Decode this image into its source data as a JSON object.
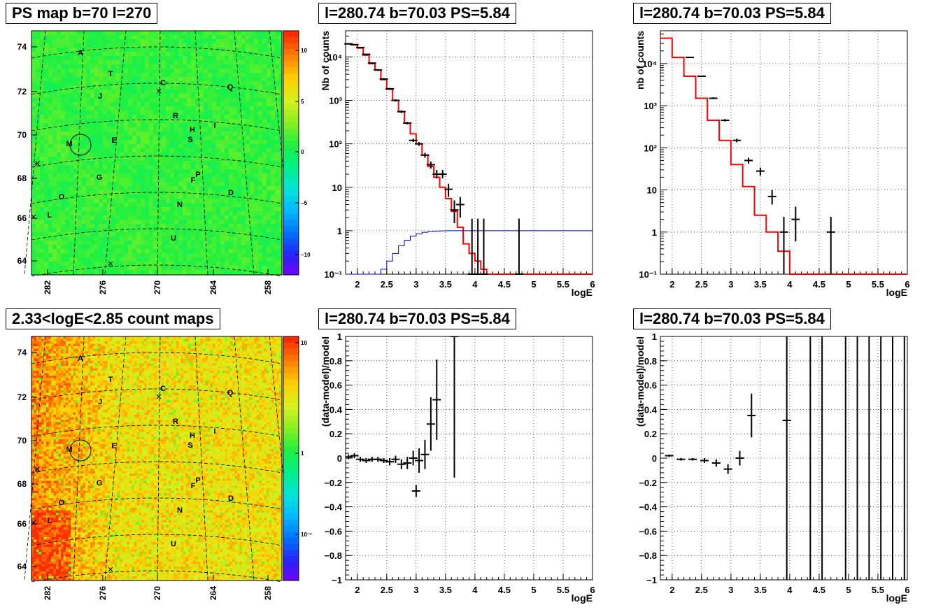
{
  "titles": {
    "tl": "PS map b=70 l=270",
    "tm": "l=280.74 b=70.03 PS=5.84",
    "tr": "l=280.74 b=70.03 PS=5.84",
    "bl": "2.33<logE<2.85 count maps",
    "bm": "l=280.74 b=70.03 PS=5.84",
    "br": "l=280.74 b=70.03 PS=5.84"
  },
  "colors": {
    "data": "#000000",
    "model": "#ff0000",
    "exposure": "#0000cc",
    "grid": "#000000"
  },
  "chart_data": [
    {
      "type": "heatmap",
      "panel": "tl",
      "title": "PS map b=70 l=270",
      "x_ticks": [
        "282",
        "276",
        "270",
        "264",
        "258"
      ],
      "y_ticks": [
        "74",
        "72",
        "70",
        "68",
        "66",
        "64"
      ],
      "colorbar_ticks": [
        "10",
        "5",
        "0",
        "−5",
        "−10"
      ],
      "colorbar_range": [
        -12,
        12
      ],
      "source_labels": [
        "A",
        "T",
        "C",
        "J",
        "Q",
        "R",
        "H",
        "I",
        "S",
        "M",
        "E",
        "K",
        "G",
        "P",
        "F",
        "D",
        "O",
        "N",
        "L",
        "U"
      ]
    },
    {
      "type": "line",
      "panel": "tm",
      "title": "l=280.74 b=70.03 PS=5.84",
      "xlabel": "logE",
      "ylabel": "Nb of counts",
      "yscale": "log",
      "xlim": [
        1.8,
        6
      ],
      "ylim": [
        0.1,
        40000
      ],
      "x_ticks": [
        "2",
        "2.5",
        "3",
        "3.5",
        "4",
        "4.5",
        "5",
        "5.5",
        "6"
      ],
      "y_ticks": [
        "10⁻¹",
        "1",
        "10",
        "10²",
        "10³",
        "10⁴"
      ],
      "bin_edges": [
        1.8,
        1.9,
        2.0,
        2.1,
        2.2,
        2.3,
        2.4,
        2.5,
        2.6,
        2.7,
        2.8,
        2.9,
        3.0,
        3.1,
        3.2,
        3.3,
        3.4,
        3.5,
        3.6,
        3.7,
        3.8,
        3.9,
        4.0,
        4.1,
        4.2,
        4.3,
        6.0
      ],
      "series": [
        {
          "name": "model",
          "values": [
            20000,
            19000,
            16000,
            11000,
            7000,
            5000,
            3000,
            1800,
            1000,
            550,
            300,
            170,
            100,
            55,
            30,
            17,
            10,
            5.5,
            2.8,
            1.2,
            0.5,
            0.3,
            0.2,
            0.13,
            0.1,
            0.1
          ]
        },
        {
          "name": "exposure",
          "x": [
            1.8,
            1.9,
            2.0,
            2.1,
            2.2,
            2.3,
            2.4,
            2.5,
            2.6,
            2.7,
            2.8,
            2.9,
            3.0,
            3.1,
            3.2,
            3.3,
            3.4,
            3.5,
            3.6,
            3.7,
            3.8,
            6.0
          ],
          "values": [
            0.1,
            0.1,
            0.1,
            0.1,
            0.1,
            0.1,
            0.13,
            0.2,
            0.3,
            0.45,
            0.6,
            0.75,
            0.85,
            0.92,
            0.96,
            0.98,
            0.99,
            1,
            1,
            1,
            1,
            1
          ]
        },
        {
          "name": "data",
          "points": [
            {
              "x": 1.85,
              "y": 20000,
              "lo": 19500,
              "hi": 20500
            },
            {
              "x": 1.95,
              "y": 19200,
              "lo": 18700,
              "hi": 19700
            },
            {
              "x": 2.05,
              "y": 16500,
              "lo": 16000,
              "hi": 17000
            },
            {
              "x": 2.15,
              "y": 11500,
              "lo": 11100,
              "hi": 11900
            },
            {
              "x": 2.25,
              "y": 7200,
              "lo": 6900,
              "hi": 7500
            },
            {
              "x": 2.35,
              "y": 5000,
              "lo": 4800,
              "hi": 5200
            },
            {
              "x": 2.45,
              "y": 3100,
              "lo": 2950,
              "hi": 3250
            },
            {
              "x": 2.55,
              "y": 1850,
              "lo": 1750,
              "hi": 1950
            },
            {
              "x": 2.65,
              "y": 1000,
              "lo": 940,
              "hi": 1060
            },
            {
              "x": 2.75,
              "y": 550,
              "lo": 510,
              "hi": 590
            },
            {
              "x": 2.85,
              "y": 300,
              "lo": 280,
              "hi": 320
            },
            {
              "x": 2.95,
              "y": 120,
              "lo": 110,
              "hi": 131
            },
            {
              "x": 3.05,
              "y": 100,
              "lo": 90,
              "hi": 110
            },
            {
              "x": 3.15,
              "y": 55,
              "lo": 48,
              "hi": 62
            },
            {
              "x": 3.25,
              "y": 33,
              "lo": 27,
              "hi": 39
            },
            {
              "x": 3.35,
              "y": 20,
              "lo": 16,
              "hi": 25
            },
            {
              "x": 3.45,
              "y": 20,
              "lo": 16,
              "hi": 25
            },
            {
              "x": 3.55,
              "y": 9,
              "lo": 6,
              "hi": 12
            },
            {
              "x": 3.65,
              "y": 3,
              "lo": 1.5,
              "hi": 5
            },
            {
              "x": 3.75,
              "y": 4,
              "lo": 2,
              "hi": 6
            },
            {
              "x": 3.95,
              "y": 0.1,
              "lo": 0.1,
              "hi": 1.9
            },
            {
              "x": 4.05,
              "y": 0.1,
              "lo": 0.1,
              "hi": 1.9
            },
            {
              "x": 4.15,
              "y": 0.1,
              "lo": 0.1,
              "hi": 1.9
            },
            {
              "x": 4.75,
              "y": 0.1,
              "lo": 0.1,
              "hi": 1.9
            }
          ]
        }
      ]
    },
    {
      "type": "line",
      "panel": "tr",
      "title": "l=280.74 b=70.03 PS=5.84",
      "xlabel": "logE",
      "ylabel": "nb of counts",
      "yscale": "log",
      "xlim": [
        1.8,
        6
      ],
      "ylim": [
        0.1,
        60000
      ],
      "x_ticks": [
        "2",
        "2.5",
        "3",
        "3.5",
        "4",
        "4.5",
        "5",
        "5.5",
        "6"
      ],
      "y_ticks": [
        "10⁻¹",
        "1",
        "10",
        "10²",
        "10³",
        "10⁴"
      ],
      "bin_edges": [
        1.8,
        2.0,
        2.2,
        2.4,
        2.6,
        2.8,
        3.0,
        3.2,
        3.4,
        3.6,
        3.8,
        4.0,
        4.2,
        6.0
      ],
      "series": [
        {
          "name": "model",
          "values": [
            40000,
            14000,
            5000,
            1500,
            450,
            150,
            40,
            12,
            2.5,
            1,
            0.35,
            0.1,
            0.1
          ]
        },
        {
          "name": "data",
          "points": [
            {
              "x": 2.3,
              "y": 14000,
              "lo": 13700,
              "hi": 14300
            },
            {
              "x": 2.5,
              "y": 5000,
              "lo": 4850,
              "hi": 5150
            },
            {
              "x": 2.7,
              "y": 1500,
              "lo": 1420,
              "hi": 1580
            },
            {
              "x": 2.9,
              "y": 450,
              "lo": 420,
              "hi": 480
            },
            {
              "x": 3.1,
              "y": 150,
              "lo": 135,
              "hi": 165
            },
            {
              "x": 3.3,
              "y": 50,
              "lo": 42,
              "hi": 58
            },
            {
              "x": 3.5,
              "y": 28,
              "lo": 22,
              "hi": 34
            },
            {
              "x": 3.7,
              "y": 7,
              "lo": 4.5,
              "hi": 10
            },
            {
              "x": 3.9,
              "y": 1,
              "lo": 0.1,
              "hi": 2.3
            },
            {
              "x": 4.1,
              "y": 2,
              "lo": 0.6,
              "hi": 4
            },
            {
              "x": 4.7,
              "y": 1,
              "lo": 0.1,
              "hi": 2.3
            }
          ]
        }
      ]
    },
    {
      "type": "heatmap",
      "panel": "bl",
      "title": "2.33<logE<2.85 count maps",
      "x_ticks": [
        "282",
        "276",
        "270",
        "264",
        "258"
      ],
      "y_ticks": [
        "74",
        "72",
        "70",
        "68",
        "66",
        "64"
      ],
      "colorbar_ticks": [
        "10",
        "1",
        "10⁻¹"
      ],
      "colorbar_range": [
        0.03,
        30
      ],
      "source_labels": [
        "A",
        "T",
        "C",
        "J",
        "Q",
        "R",
        "H",
        "I",
        "S",
        "M",
        "E",
        "K",
        "G",
        "P",
        "F",
        "D",
        "O",
        "N",
        "L",
        "U"
      ]
    },
    {
      "type": "scatter",
      "panel": "bm",
      "title": "l=280.74 b=70.03 PS=5.84",
      "xlabel": "logE",
      "ylabel": "(data-model)/model",
      "xlim": [
        1.8,
        6
      ],
      "ylim": [
        -1,
        1
      ],
      "x_ticks": [
        "2",
        "2.5",
        "3",
        "3.5",
        "4",
        "4.5",
        "5",
        "5.5",
        "6"
      ],
      "y_ticks": [
        "1",
        "0.8",
        "0.6",
        "0.4",
        "0.2",
        "0",
        "−0.2",
        "−0.4",
        "−0.6",
        "−0.8",
        "−1"
      ],
      "series": [
        {
          "name": "residual",
          "points": [
            {
              "x": 1.85,
              "y": 0.01,
              "err": 0.02
            },
            {
              "x": 1.95,
              "y": 0.02,
              "err": 0.02
            },
            {
              "x": 2.05,
              "y": -0.01,
              "err": 0.02
            },
            {
              "x": 2.15,
              "y": -0.02,
              "err": 0.02
            },
            {
              "x": 2.25,
              "y": -0.01,
              "err": 0.02
            },
            {
              "x": 2.35,
              "y": -0.01,
              "err": 0.02
            },
            {
              "x": 2.45,
              "y": -0.02,
              "err": 0.02
            },
            {
              "x": 2.55,
              "y": -0.03,
              "err": 0.03
            },
            {
              "x": 2.65,
              "y": -0.01,
              "err": 0.03
            },
            {
              "x": 2.75,
              "y": -0.05,
              "err": 0.04
            },
            {
              "x": 2.85,
              "y": -0.04,
              "err": 0.05
            },
            {
              "x": 2.95,
              "y": 0.0,
              "err": 0.06
            },
            {
              "x": 3.0,
              "y": -0.27,
              "err": 0.05
            },
            {
              "x": 3.05,
              "y": -0.02,
              "err": 0.1
            },
            {
              "x": 3.15,
              "y": 0.03,
              "err": 0.12
            },
            {
              "x": 3.25,
              "y": 0.28,
              "err": 0.22
            },
            {
              "x": 3.35,
              "y": 0.48,
              "err": 0.33
            },
            {
              "x": 3.65,
              "y": 1.0,
              "err": 1.16
            }
          ]
        }
      ]
    },
    {
      "type": "scatter",
      "panel": "br",
      "title": "l=280.74 b=70.03 PS=5.84",
      "xlabel": "logE",
      "ylabel": "(data-model)/model",
      "xlim": [
        1.8,
        6
      ],
      "ylim": [
        -1,
        1
      ],
      "x_ticks": [
        "2",
        "2.5",
        "3",
        "3.5",
        "4",
        "4.5",
        "5",
        "5.5",
        "6"
      ],
      "y_ticks": [
        "1",
        "0.8",
        "0.6",
        "0.4",
        "0.2",
        "0",
        "−0.2",
        "−0.4",
        "−0.6",
        "−0.8",
        "−1"
      ],
      "series": [
        {
          "name": "residual",
          "points": [
            {
              "x": 1.95,
              "y": 0.02,
              "err": 0.01
            },
            {
              "x": 2.15,
              "y": -0.01,
              "err": 0.01
            },
            {
              "x": 2.35,
              "y": -0.01,
              "err": 0.01
            },
            {
              "x": 2.55,
              "y": -0.02,
              "err": 0.02
            },
            {
              "x": 2.75,
              "y": -0.04,
              "err": 0.03
            },
            {
              "x": 2.95,
              "y": -0.09,
              "err": 0.04
            },
            {
              "x": 3.15,
              "y": 0.0,
              "err": 0.06
            },
            {
              "x": 3.35,
              "y": 0.35,
              "err": 0.18
            },
            {
              "x": 3.95,
              "y": 0.31,
              "err": 1.5
            },
            {
              "x": 4.35,
              "y": 0,
              "err": 1.5
            },
            {
              "x": 4.55,
              "y": 0,
              "err": 1.5
            },
            {
              "x": 4.95,
              "y": 0,
              "err": 1.5
            },
            {
              "x": 5.15,
              "y": 0,
              "err": 1.5
            },
            {
              "x": 5.35,
              "y": 0,
              "err": 1.5
            },
            {
              "x": 5.55,
              "y": 0,
              "err": 1.5
            },
            {
              "x": 5.75,
              "y": 0,
              "err": 1.5
            },
            {
              "x": 5.95,
              "y": 0,
              "err": 1.5
            }
          ]
        }
      ]
    }
  ]
}
